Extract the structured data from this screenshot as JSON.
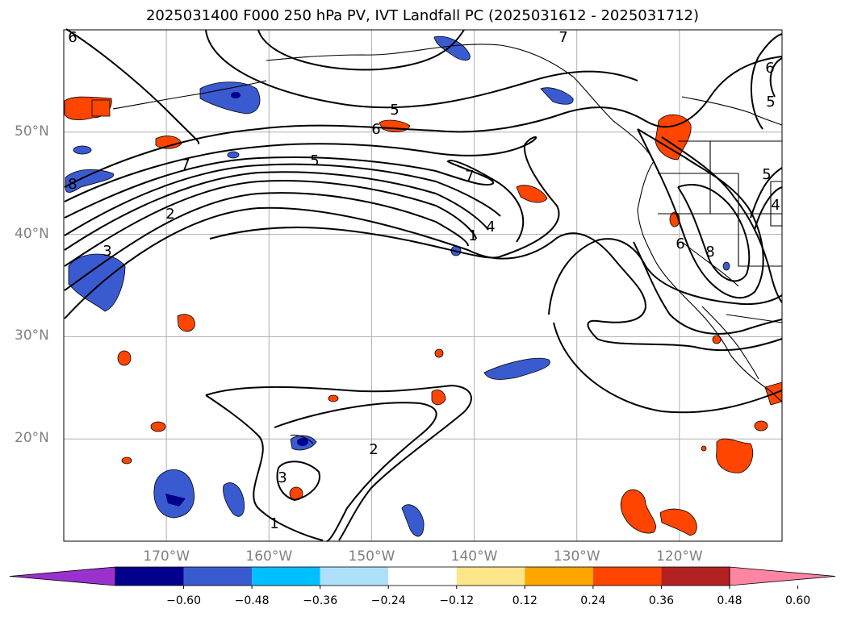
{
  "title": "2025031400 F000 250 hPa PV, IVT Landfall PC (2025031612 - 2025031712)",
  "lat_labels": [
    {
      "text": "50°N",
      "lat": 50
    },
    {
      "text": "40°N",
      "lat": 40
    },
    {
      "text": "30°N",
      "lat": 30
    },
    {
      "text": "20°N",
      "lat": 20
    }
  ],
  "lon_labels": [
    {
      "text": "170°W",
      "lon": -170
    },
    {
      "text": "160°W",
      "lon": -160
    },
    {
      "text": "150°W",
      "lon": -150
    },
    {
      "text": "140°W",
      "lon": -140
    },
    {
      "text": "130°W",
      "lon": -130
    },
    {
      "text": "120°W",
      "lon": -120
    }
  ],
  "colorbar": {
    "colors": [
      "#9932cc",
      "#00008b",
      "#3a5bd0",
      "#00bfff",
      "#aee0fa",
      "#ffffff",
      "#fde68a",
      "#ffa500",
      "#ff4500",
      "#b22222",
      "#ff85a2"
    ],
    "ticks": [
      "−0.60",
      "−0.48",
      "−0.36",
      "−0.24",
      "−0.12",
      "0.12",
      "0.24",
      "0.36",
      "0.48",
      "0.60"
    ]
  },
  "contour_labels": [
    "6",
    "7",
    "5",
    "6",
    "5",
    "7",
    "2",
    "4",
    "1",
    "3",
    "7",
    "6",
    "5",
    "6",
    "5",
    "4",
    "8",
    "8",
    "2",
    "3",
    "1"
  ],
  "colors": {
    "grid": "#b0b0b0",
    "contour": "#000000",
    "coast": "#000000"
  }
}
